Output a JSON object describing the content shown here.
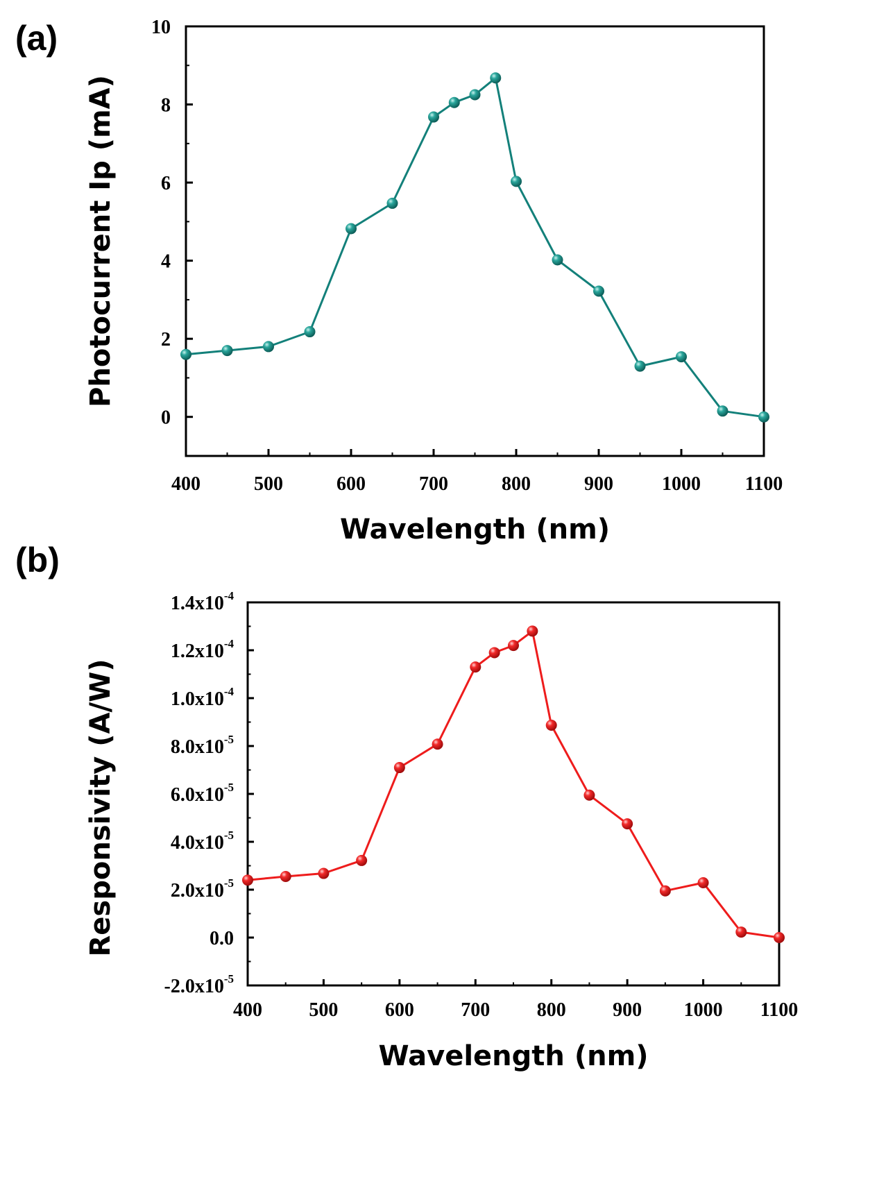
{
  "chart_data": [
    {
      "panel": "(a)",
      "type": "line",
      "xlabel": "Wavelength (nm)",
      "ylabel": "Photocurrent Ip (mA)",
      "xlim": [
        400,
        1100
      ],
      "ylim": [
        -1,
        10
      ],
      "xticks": [
        400,
        500,
        600,
        700,
        800,
        900,
        1000,
        1100
      ],
      "xtick_labels": [
        "400",
        "500",
        "600",
        "700",
        "800",
        "900",
        "1000",
        "1100"
      ],
      "yticks": [
        0,
        2,
        4,
        6,
        8,
        10
      ],
      "ytick_labels": [
        "0",
        "2",
        "4",
        "6",
        "8",
        "10"
      ],
      "color": "#13807a",
      "x": [
        400,
        450,
        500,
        550,
        600,
        650,
        700,
        725,
        750,
        775,
        800,
        850,
        900,
        950,
        1000,
        1050,
        1100
      ],
      "y": [
        1.6,
        1.7,
        1.8,
        2.18,
        4.82,
        5.47,
        7.68,
        8.05,
        8.25,
        8.68,
        6.03,
        4.02,
        3.22,
        1.3,
        1.54,
        0.15,
        0.0
      ]
    },
    {
      "panel": "(b)",
      "type": "line",
      "xlabel": "Wavelength (nm)",
      "ylabel": "Responsivity (A/W)",
      "xlim": [
        400,
        1100
      ],
      "ylim": [
        -2e-05,
        0.00014
      ],
      "xticks": [
        400,
        500,
        600,
        700,
        800,
        900,
        1000,
        1100
      ],
      "xtick_labels": [
        "400",
        "500",
        "600",
        "700",
        "800",
        "900",
        "1000",
        "1100"
      ],
      "yticks": [
        -2e-05,
        0,
        2e-05,
        4e-05,
        6e-05,
        8e-05,
        0.0001,
        0.00012,
        0.00014
      ],
      "ytick_labels": [
        {
          "m": "-2.0x10",
          "e": "-5"
        },
        {
          "m": "0.0",
          "e": ""
        },
        {
          "m": "2.0x10",
          "e": "-5"
        },
        {
          "m": "4.0x10",
          "e": "-5"
        },
        {
          "m": "6.0x10",
          "e": "-5"
        },
        {
          "m": "8.0x10",
          "e": "-5"
        },
        {
          "m": "1.0x10",
          "e": "-4"
        },
        {
          "m": "1.2x10",
          "e": "-4"
        },
        {
          "m": "1.4x10",
          "e": "-4"
        }
      ],
      "color": "#ee1c1c",
      "x": [
        400,
        450,
        500,
        550,
        600,
        650,
        700,
        725,
        750,
        775,
        800,
        850,
        900,
        950,
        1000,
        1050,
        1100
      ],
      "y": [
        2.4e-05,
        2.55e-05,
        2.68e-05,
        3.22e-05,
        7.1e-05,
        8.08e-05,
        0.000113,
        0.000119,
        0.000122,
        0.000128,
        8.87e-05,
        5.95e-05,
        4.75e-05,
        1.95e-05,
        2.29e-05,
        2.3e-06,
        0.0
      ]
    }
  ]
}
